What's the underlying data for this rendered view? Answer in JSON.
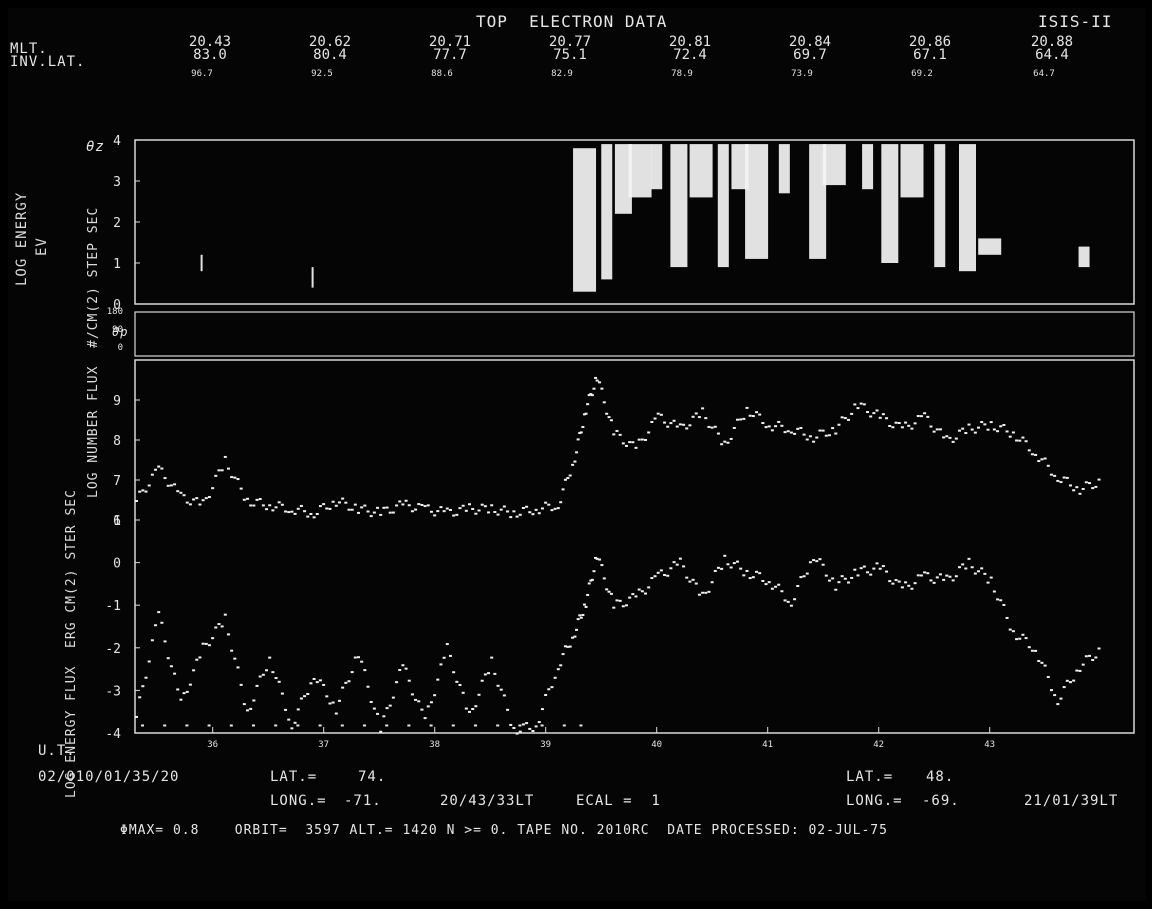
{
  "header": {
    "title": "TOP  ELECTRON DATA",
    "satellite": "ISIS-II",
    "mlt_label": "MLT.",
    "invlat_label": "INV.LAT.",
    "mlt_values": [
      "20.43",
      "20.62",
      "20.71",
      "20.77",
      "20.81",
      "20.84",
      "20.86",
      "20.88"
    ],
    "invlat_values": [
      "83.0",
      "80.4",
      "77.7",
      "75.1",
      "72.4",
      "69.7",
      "67.1",
      "64.4"
    ],
    "theta_z_values": [
      "96.7",
      "92.5",
      "88.6",
      "82.9",
      "78.9",
      "73.9",
      "69.2",
      "64.7"
    ]
  },
  "left_axis_labels": {
    "panel1": "LOG ENERGY",
    "panel1_unit": "EV",
    "theta_z": "θz",
    "theta_p": "θp",
    "panel2": "LOG NUMBER FLUX  #/CM(2) STEP SEC",
    "panel3": "LOG ENERGY FLUX  ERG CM(2) STER SEC"
  },
  "footer": {
    "time_label": "U.T.",
    "start_time": "02/010/01/35/20",
    "lat_start_label": "LAT.=",
    "lat_start_value": "74.",
    "long_start_label": "LONG.=",
    "long_start_value": "-71.",
    "local_time_start": "20/43/33LT",
    "ecal": "ECAL =  1",
    "lat_end_label": "LAT.=",
    "lat_end_value": "48.",
    "long_end_label": "LONG.=",
    "long_end_value": "-69.",
    "local_time_end": "21/01/39LT",
    "info_line": "ΦMAX= 0.8    ORBIT=  3597 ALT.= 1420 N >= 0. TAPE NO. 2010RC  DATE PROCESSED: 02-JUL-75"
  },
  "chart_data": [
    {
      "type": "scatter",
      "title": "TOP  ELECTRON DATA",
      "ylabel": "LOG ENERGY EV",
      "ylim": [
        0,
        4
      ],
      "yticks": [
        "0",
        "1",
        "2",
        "3",
        "4"
      ],
      "description_series": [
        {
          "name": "precipitation bands (x in minutes after 01:35)",
          "x": [
            0.6,
            1.6,
            4.05,
            4.25,
            4.4,
            4.55,
            4.7,
            4.9,
            5.1,
            5.3,
            5.45,
            5.6,
            5.85,
            6.15,
            6.3,
            6.6,
            6.8,
            7.0,
            7.25,
            7.5,
            7.7,
            8.55
          ],
          "ymin": [
            0.8,
            0.4,
            0.3,
            0.6,
            2.2,
            2.6,
            2.8,
            0.9,
            2.6,
            0.9,
            2.8,
            1.1,
            2.7,
            1.1,
            2.9,
            2.8,
            1.0,
            2.6,
            0.9,
            0.8,
            1.2,
            0.9
          ],
          "ymax": [
            1.2,
            0.9,
            3.8,
            3.9,
            3.9,
            3.9,
            3.9,
            3.9,
            3.9,
            3.9,
            3.9,
            3.9,
            3.9,
            3.9,
            3.9,
            3.9,
            3.9,
            3.9,
            3.9,
            3.9,
            1.6,
            1.4
          ]
        }
      ]
    },
    {
      "type": "scatter",
      "ylabel": "LOG NUMBER FLUX #/CM(2) STEP SEC",
      "ylim": [
        6,
        10
      ],
      "yticks": [
        "6",
        "7",
        "8",
        "9"
      ],
      "series": [
        {
          "name": "number flux",
          "x": [
            0.0,
            0.2,
            0.4,
            0.6,
            0.8,
            1.0,
            1.2,
            1.4,
            1.6,
            1.8,
            2.0,
            2.2,
            2.4,
            2.6,
            2.8,
            3.0,
            3.2,
            3.4,
            3.6,
            3.8,
            3.95,
            4.05,
            4.15,
            4.3,
            4.5,
            4.7,
            4.9,
            5.1,
            5.3,
            5.5,
            5.7,
            5.9,
            6.1,
            6.3,
            6.5,
            6.7,
            6.9,
            7.1,
            7.3,
            7.5,
            7.7,
            7.9,
            8.1,
            8.3,
            8.5,
            8.7
          ],
          "y": [
            6.5,
            7.3,
            6.6,
            6.4,
            7.5,
            6.5,
            6.4,
            6.3,
            6.2,
            6.5,
            6.3,
            6.2,
            6.4,
            6.3,
            6.2,
            6.3,
            6.3,
            6.2,
            6.3,
            6.4,
            7.6,
            8.8,
            9.6,
            8.2,
            7.8,
            8.6,
            8.3,
            8.7,
            7.9,
            8.8,
            8.4,
            8.3,
            8.1,
            8.3,
            8.9,
            8.6,
            8.3,
            8.6,
            8.0,
            8.3,
            8.4,
            8.2,
            7.7,
            7.1,
            6.8,
            7.0
          ]
        }
      ]
    },
    {
      "type": "scatter",
      "ylabel": "LOG ENERGY FLUX ERG CM(2) STER SEC",
      "ylim": [
        -4,
        1
      ],
      "yticks": [
        "-4",
        "-3",
        "-2",
        "-1",
        "0",
        "1"
      ],
      "xlabel": "U.T.",
      "xticks": [
        "36",
        "37",
        "38",
        "39",
        "40",
        "41",
        "42",
        "43"
      ],
      "series": [
        {
          "name": "energy flux",
          "x": [
            0.0,
            0.2,
            0.4,
            0.6,
            0.8,
            1.0,
            1.2,
            1.4,
            1.6,
            1.8,
            2.0,
            2.2,
            2.4,
            2.6,
            2.8,
            3.0,
            3.2,
            3.4,
            3.6,
            3.8,
            3.95,
            4.05,
            4.15,
            4.3,
            4.5,
            4.7,
            4.9,
            5.1,
            5.3,
            5.5,
            5.7,
            5.9,
            6.1,
            6.3,
            6.5,
            6.7,
            6.9,
            7.1,
            7.3,
            7.5,
            7.7,
            7.9,
            8.1,
            8.3,
            8.5,
            8.7
          ],
          "y": [
            -3.6,
            -1.2,
            -3.3,
            -2.0,
            -1.3,
            -3.5,
            -2.2,
            -3.8,
            -2.6,
            -3.4,
            -2.1,
            -3.9,
            -2.4,
            -3.7,
            -2.0,
            -3.6,
            -2.3,
            -3.9,
            -3.8,
            -2.4,
            -1.6,
            -0.9,
            0.2,
            -1.0,
            -0.8,
            -0.3,
            0.0,
            -0.8,
            0.1,
            -0.2,
            -0.4,
            -0.9,
            0.2,
            -0.5,
            -0.2,
            -0.1,
            -0.6,
            -0.3,
            -0.4,
            0.0,
            -0.4,
            -1.6,
            -2.0,
            -3.2,
            -2.4,
            -2.0
          ]
        }
      ]
    }
  ]
}
